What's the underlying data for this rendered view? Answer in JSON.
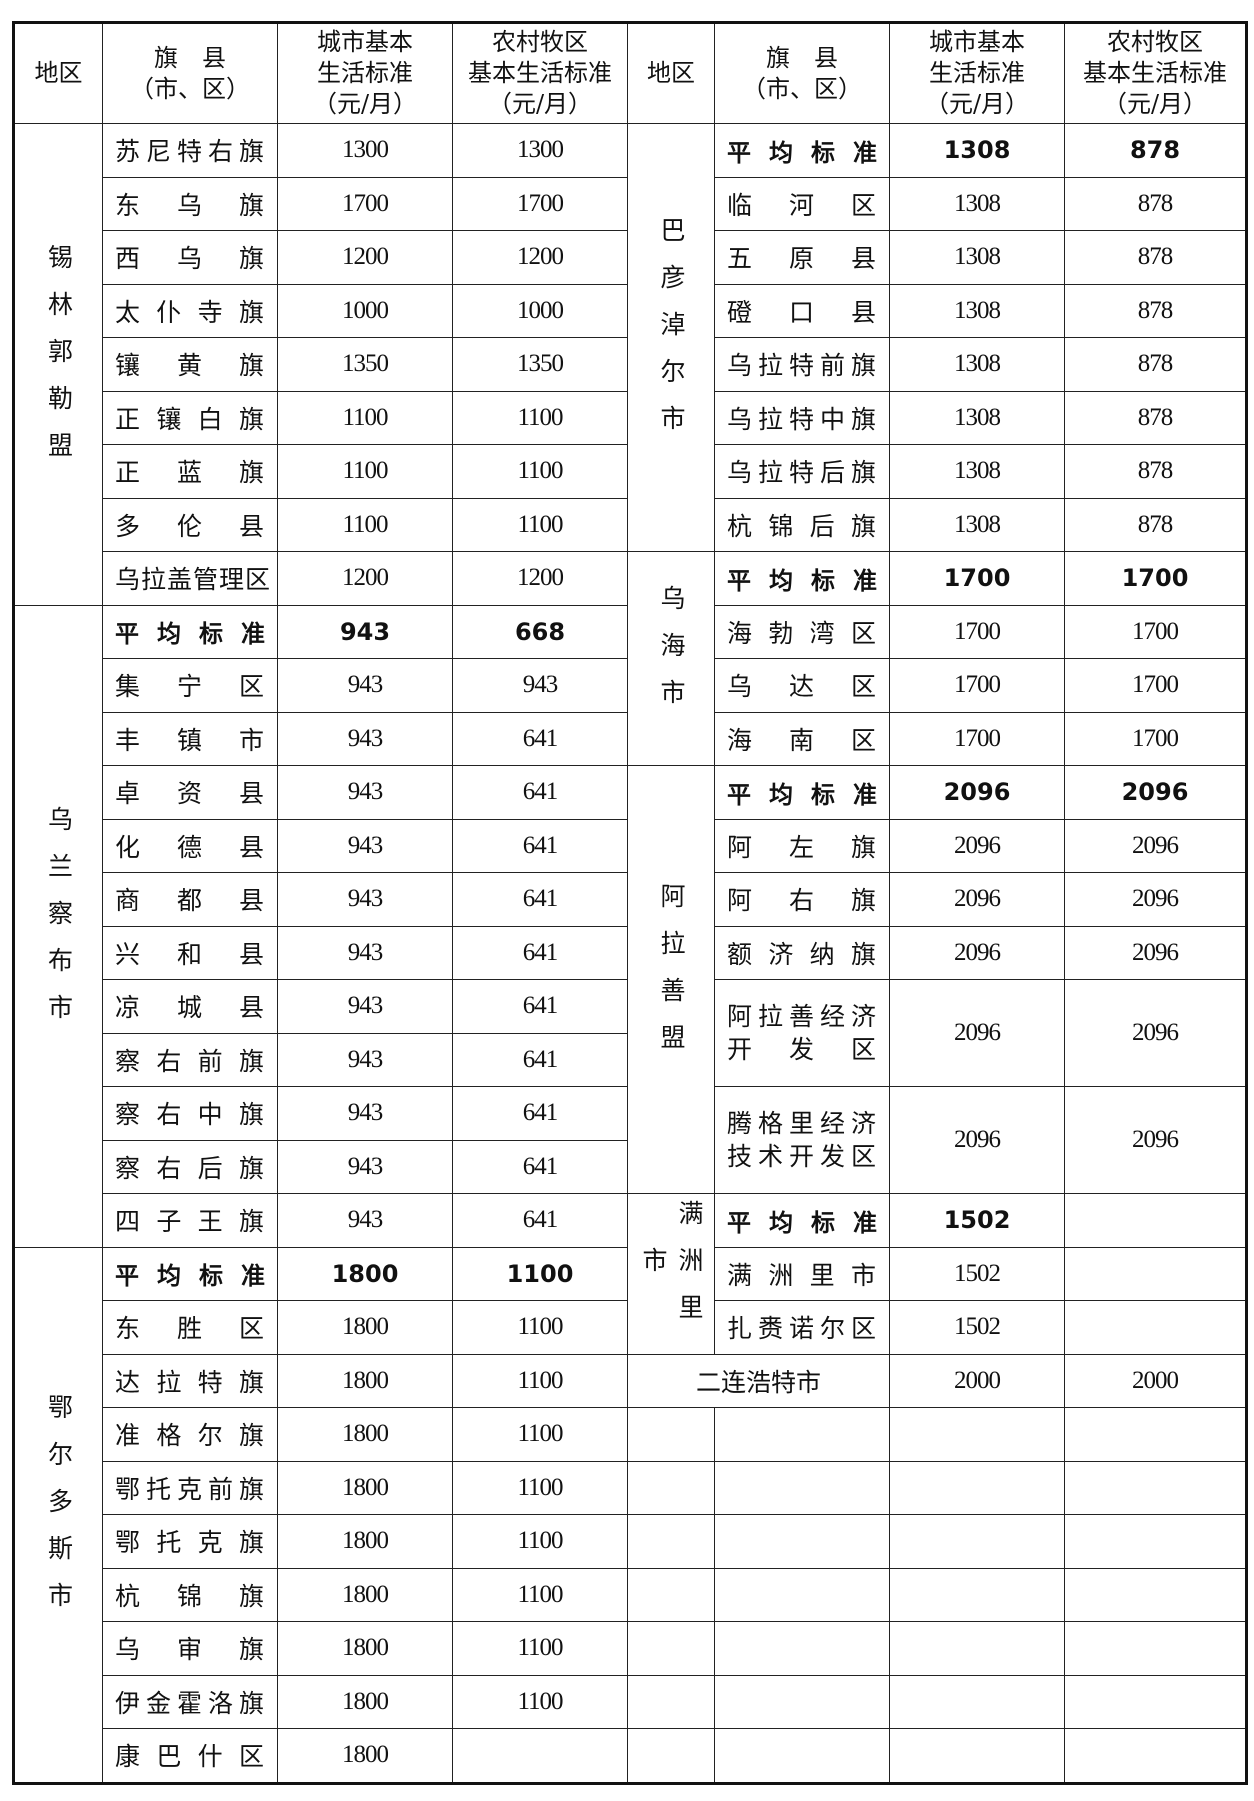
{
  "header": {
    "region": [
      "地区"
    ],
    "county": [
      "旗　县",
      "（市、区）"
    ],
    "urban": [
      "城市基本",
      "生活标准",
      "（元/月）"
    ],
    "rural": [
      "农村牧区",
      "基本生活标准",
      "（元/月）"
    ]
  },
  "left": {
    "regions": [
      {
        "name": "锡林郭勒盟",
        "rows": 9
      },
      {
        "name": "乌兰察布市",
        "rows": 12
      },
      {
        "name": "鄂尔多斯市",
        "rows": 10
      }
    ],
    "rows": [
      {
        "name": "苏尼特右旗",
        "urban": "1300",
        "rural": "1300"
      },
      {
        "name": "东乌旗",
        "urban": "1700",
        "rural": "1700"
      },
      {
        "name": "西乌旗",
        "urban": "1200",
        "rural": "1200"
      },
      {
        "name": "太仆寺旗",
        "urban": "1000",
        "rural": "1000"
      },
      {
        "name": "镶黄旗",
        "urban": "1350",
        "rural": "1350"
      },
      {
        "name": "正镶白旗",
        "urban": "1100",
        "rural": "1100"
      },
      {
        "name": "正蓝旗",
        "urban": "1100",
        "rural": "1100"
      },
      {
        "name": "多伦县",
        "urban": "1100",
        "rural": "1100"
      },
      {
        "name": "乌拉盖管理区",
        "urban": "1200",
        "rural": "1200"
      },
      {
        "name": "平均标准",
        "urban": "943",
        "rural": "668",
        "bold": true
      },
      {
        "name": "集宁区",
        "urban": "943",
        "rural": "943"
      },
      {
        "name": "丰镇市",
        "urban": "943",
        "rural": "641"
      },
      {
        "name": "卓资县",
        "urban": "943",
        "rural": "641"
      },
      {
        "name": "化德县",
        "urban": "943",
        "rural": "641"
      },
      {
        "name": "商都县",
        "urban": "943",
        "rural": "641"
      },
      {
        "name": "兴和县",
        "urban": "943",
        "rural": "641"
      },
      {
        "name": "凉城县",
        "urban": "943",
        "rural": "641"
      },
      {
        "name": "察右前旗",
        "urban": "943",
        "rural": "641"
      },
      {
        "name": "察右中旗",
        "urban": "943",
        "rural": "641"
      },
      {
        "name": "察右后旗",
        "urban": "943",
        "rural": "641"
      },
      {
        "name": "四子王旗",
        "urban": "943",
        "rural": "641"
      },
      {
        "name": "平均标准",
        "urban": "1800",
        "rural": "1100",
        "bold": true
      },
      {
        "name": "东胜区",
        "urban": "1800",
        "rural": "1100"
      },
      {
        "name": "达拉特旗",
        "urban": "1800",
        "rural": "1100"
      },
      {
        "name": "准格尔旗",
        "urban": "1800",
        "rural": "1100"
      },
      {
        "name": "鄂托克前旗",
        "urban": "1800",
        "rural": "1100"
      },
      {
        "name": "鄂托克旗",
        "urban": "1800",
        "rural": "1100"
      },
      {
        "name": "杭锦旗",
        "urban": "1800",
        "rural": "1100"
      },
      {
        "name": "乌审旗",
        "urban": "1800",
        "rural": "1100"
      },
      {
        "name": "伊金霍洛旗",
        "urban": "1800",
        "rural": "1100"
      },
      {
        "name": "康巴什区",
        "urban": "1800",
        "rural": ""
      }
    ]
  },
  "right": {
    "regions": [
      {
        "name": "巴彦淖尔市",
        "rows": 8
      },
      {
        "name": "乌海市",
        "rows": 4
      },
      {
        "name": "阿拉善盟",
        "rows": 8
      },
      {
        "name": "满洲里市",
        "rows": 3
      }
    ],
    "rows": [
      {
        "name": "平均标准",
        "urban": "1308",
        "rural": "878",
        "bold": true
      },
      {
        "name": "临河区",
        "urban": "1308",
        "rural": "878"
      },
      {
        "name": "五原县",
        "urban": "1308",
        "rural": "878"
      },
      {
        "name": "磴口县",
        "urban": "1308",
        "rural": "878"
      },
      {
        "name": "乌拉特前旗",
        "urban": "1308",
        "rural": "878"
      },
      {
        "name": "乌拉特中旗",
        "urban": "1308",
        "rural": "878"
      },
      {
        "name": "乌拉特后旗",
        "urban": "1308",
        "rural": "878"
      },
      {
        "name": "杭锦后旗",
        "urban": "1308",
        "rural": "878"
      },
      {
        "name": "平均标准",
        "urban": "1700",
        "rural": "1700",
        "bold": true
      },
      {
        "name": "海勃湾区",
        "urban": "1700",
        "rural": "1700"
      },
      {
        "name": "乌达区",
        "urban": "1700",
        "rural": "1700"
      },
      {
        "name": "海南区",
        "urban": "1700",
        "rural": "1700"
      },
      {
        "name": "平均标准",
        "urban": "2096",
        "rural": "2096",
        "bold": true
      },
      {
        "name": "阿左旗",
        "urban": "2096",
        "rural": "2096"
      },
      {
        "name": "阿右旗",
        "urban": "2096",
        "rural": "2096"
      },
      {
        "name": "额济纳旗",
        "urban": "2096",
        "rural": "2096"
      },
      {
        "lines": [
          "阿拉善经济",
          "开发区"
        ],
        "urban": "2096",
        "rural": "2096",
        "span": 2
      },
      {
        "lines": [
          "腾格里经济",
          "技术开发区"
        ],
        "urban": "2096",
        "rural": "2096",
        "span": 2
      },
      {
        "name": "平均标准",
        "urban": "1502",
        "rural": "",
        "bold": true
      },
      {
        "name": "满洲里市",
        "urban": "1502",
        "rural": ""
      },
      {
        "name": "扎赉诺尔区",
        "urban": "1502",
        "rural": ""
      },
      {
        "standalone": "二连浩特市",
        "urban": "2000",
        "rural": "2000"
      }
    ],
    "empty_rows": 7
  }
}
